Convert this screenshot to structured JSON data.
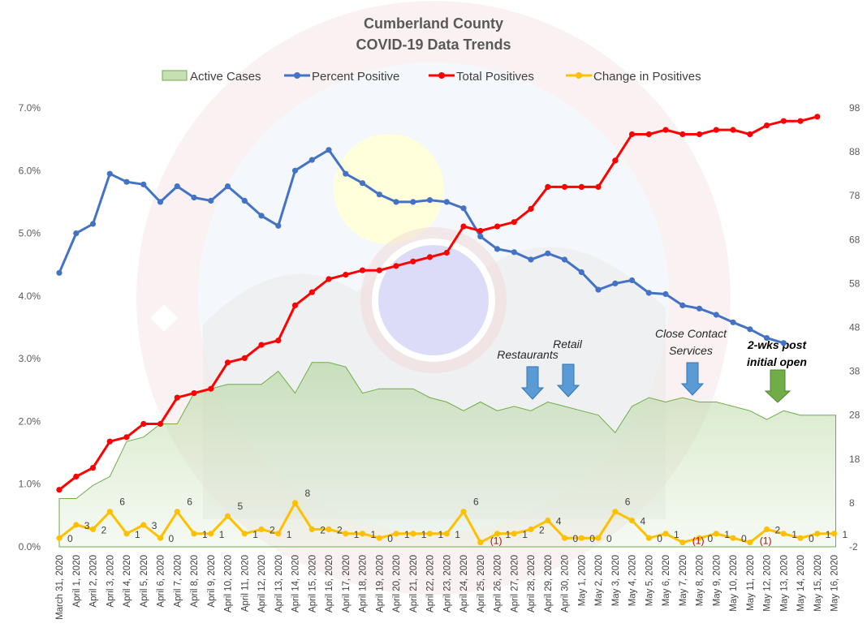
{
  "chart_data": {
    "type": "line",
    "title": [
      "Cumberland County",
      "COVID-19 Data Trends"
    ],
    "x": [
      "March 31, 2020",
      "April 1, 2020",
      "April 2, 2020",
      "April 3, 2020",
      "April 4, 2020",
      "April 5, 2020",
      "April 6, 2020",
      "April 7, 2020",
      "April 8, 2020",
      "April 9, 2020",
      "April 10, 2020",
      "April 11, 2020",
      "April 12, 2020",
      "April 13, 2020",
      "April 14, 2020",
      "April 15, 2020",
      "April 16, 2020",
      "April 17, 2020",
      "April 18, 2020",
      "April 19, 2020",
      "April 20, 2020",
      "April 21, 2020",
      "April 22, 2020",
      "April 23, 2020",
      "April 24, 2020",
      "April 25, 2020",
      "April 26, 2020",
      "April 27, 2020",
      "April 28, 2020",
      "April 29, 2020",
      "April 30, 2020",
      "May 1, 2020",
      "May 2, 2020",
      "May 3, 2020",
      "May 4, 2020",
      "May 5, 2020",
      "May 6, 2020",
      "May 7, 2020",
      "May 8, 2020",
      "May 9, 2020",
      "May 10, 2020",
      "May 11, 2020",
      "May 12, 2020",
      "May 13, 2020",
      "May 14, 2020",
      "May 15, 2020",
      "May 16, 2020"
    ],
    "y_left": {
      "ticks": [
        "0.0%",
        "1.0%",
        "2.0%",
        "3.0%",
        "4.0%",
        "5.0%",
        "6.0%",
        "7.0%"
      ],
      "ylim": [
        0,
        7
      ]
    },
    "y_right": {
      "ticks": [
        "-2",
        "8",
        "18",
        "28",
        "38",
        "48",
        "58",
        "68",
        "78",
        "88",
        "98"
      ],
      "ylim": [
        -2,
        98
      ]
    },
    "grid": false,
    "legend_position": "top",
    "series": [
      {
        "name": "Active Cases",
        "type": "area",
        "axis": "right",
        "color": "#70ad47",
        "values": [
          9,
          9,
          12,
          14,
          22,
          23,
          26,
          26,
          33,
          34,
          35,
          35,
          35,
          38,
          33,
          40,
          40,
          39,
          33,
          34,
          34,
          34,
          32,
          31,
          29,
          31,
          29,
          30,
          29,
          31,
          30,
          29,
          28,
          24,
          30,
          32,
          31,
          32,
          31,
          31,
          30,
          29,
          27,
          29,
          28,
          28,
          28
        ]
      },
      {
        "name": "Percent Positive",
        "type": "line",
        "axis": "left",
        "color": "#4472c4",
        "values": [
          4.37,
          5.0,
          5.15,
          5.95,
          5.82,
          5.78,
          5.5,
          5.75,
          5.57,
          5.52,
          5.75,
          5.52,
          5.28,
          5.12,
          6.0,
          6.17,
          6.33,
          5.95,
          5.8,
          5.62,
          5.5,
          5.5,
          5.53,
          5.5,
          5.4,
          4.95,
          4.75,
          4.7,
          4.58,
          4.68,
          4.58,
          4.38,
          4.1,
          4.2,
          4.25,
          4.05,
          4.03,
          3.85,
          3.8,
          3.7,
          3.58,
          3.47,
          3.33,
          3.25,
          null,
          null,
          null
        ]
      },
      {
        "name": "Total Positives",
        "type": "line",
        "axis": "right",
        "color": "#ff0000",
        "values": [
          11,
          14,
          16,
          22,
          23,
          26,
          26,
          32,
          33,
          34,
          40,
          41,
          44,
          45,
          53,
          56,
          59,
          60,
          61,
          61,
          62,
          63,
          64,
          65,
          71,
          70,
          71,
          72,
          75,
          80,
          80,
          80,
          80,
          86,
          92,
          92,
          93,
          92,
          92,
          93,
          93,
          92,
          94,
          95,
          95,
          96,
          null
        ]
      },
      {
        "name": "Change in Positives",
        "type": "line",
        "axis": "right",
        "color": "#ffc000",
        "values": [
          0,
          3,
          2,
          6,
          1,
          3,
          0,
          6,
          1,
          1,
          5,
          1,
          2,
          1,
          8,
          2,
          2,
          1,
          1,
          0,
          1,
          1,
          1,
          1,
          6,
          -1,
          1,
          1,
          2,
          4,
          0,
          0,
          0,
          6,
          4,
          0,
          1,
          -1,
          0,
          1,
          0,
          -1,
          2,
          1,
          0,
          1,
          1
        ],
        "labels": [
          "0",
          "3",
          "2",
          "6",
          "1",
          "3",
          "0",
          "6",
          "1",
          "1",
          "5",
          "1",
          "2",
          "1",
          "8",
          "2",
          "2",
          "1",
          "1",
          "0",
          "1",
          "1",
          "1",
          "1",
          "6",
          "(1)",
          "1",
          "1",
          "2",
          "4",
          "0",
          "0",
          "0",
          "6",
          "4",
          "0",
          "1",
          "(1)",
          "0",
          "1",
          "0",
          "(1)",
          "2",
          "1",
          "0",
          "1",
          "1"
        ]
      }
    ],
    "annotations": [
      {
        "text": [
          "Restaurants"
        ],
        "arrow_color": "#5b9bd5"
      },
      {
        "text": [
          "Retail"
        ],
        "arrow_color": "#5b9bd5"
      },
      {
        "text": [
          "Close Contact",
          "Services"
        ],
        "arrow_color": "#5b9bd5"
      },
      {
        "text": [
          "2-wks post",
          "initial open"
        ],
        "arrow_color": "#70ad47",
        "bold": true
      }
    ]
  }
}
